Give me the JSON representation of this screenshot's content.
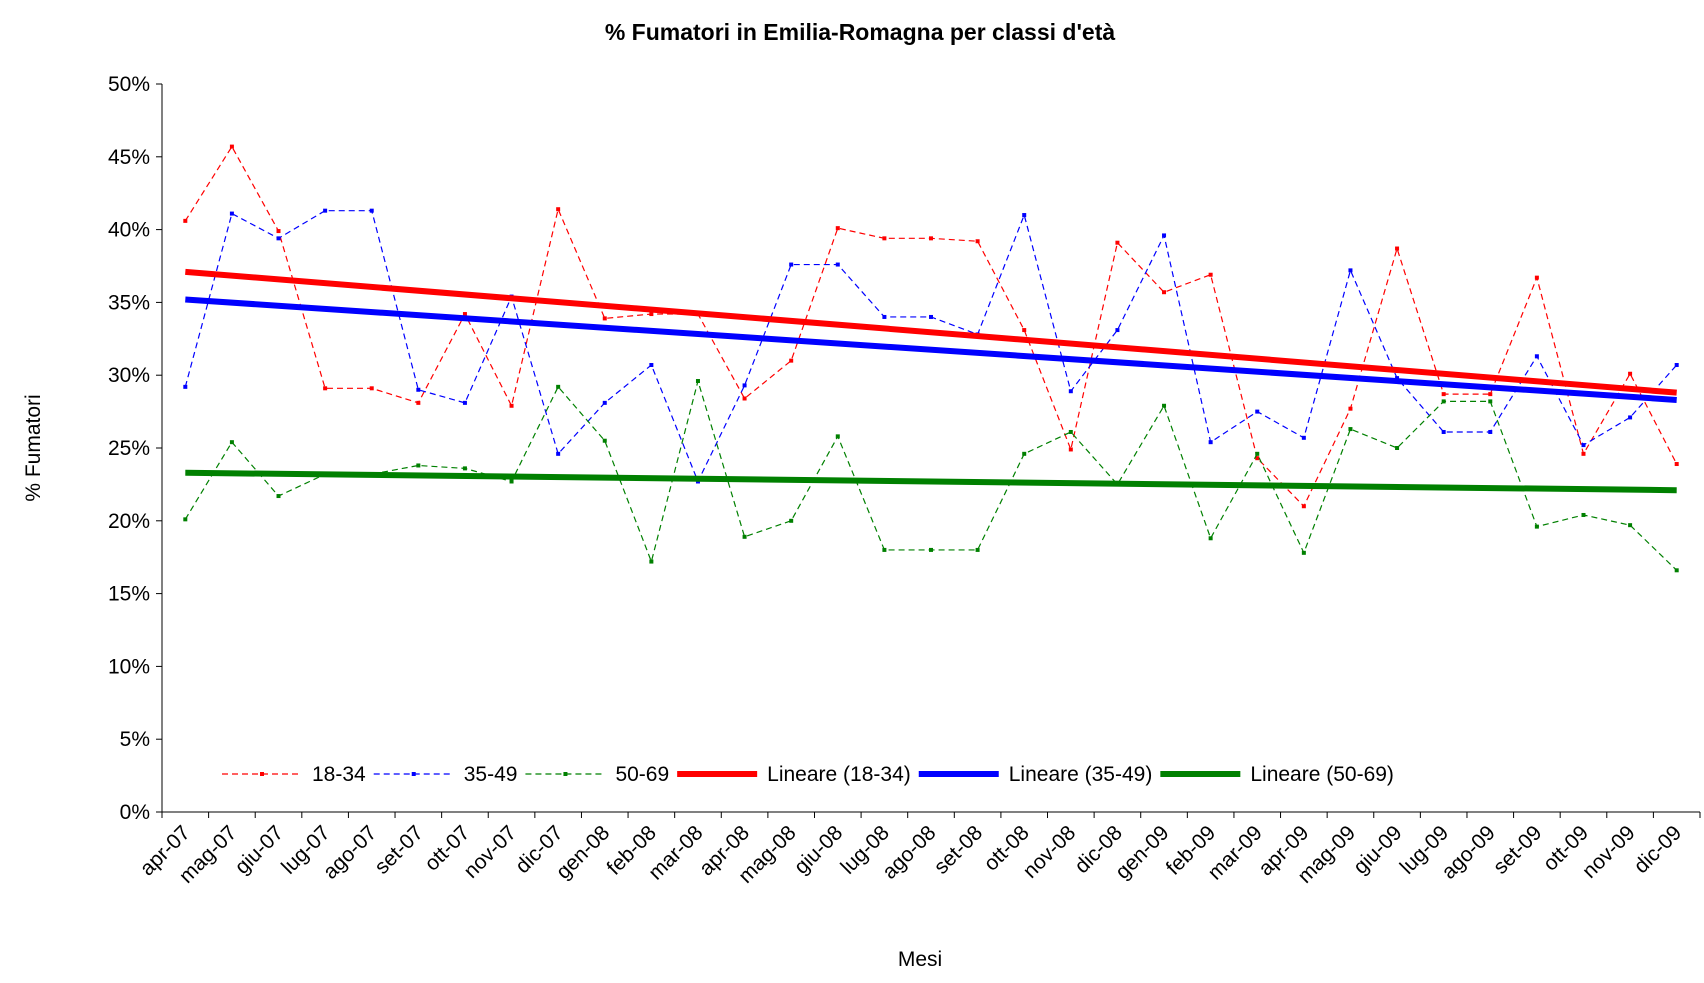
{
  "chart_data": {
    "type": "line",
    "title": "% Fumatori in Emilia-Romagna per classi d'età",
    "x_label": "Mesi",
    "y_label": "% Fumatori",
    "categories": [
      "apr-07",
      "mag-07",
      "giu-07",
      "lug-07",
      "ago-07",
      "set-07",
      "ott-07",
      "nov-07",
      "dic-07",
      "gen-08",
      "feb-08",
      "mar-08",
      "apr-08",
      "mag-08",
      "giu-08",
      "lug-08",
      "ago-08",
      "set-08",
      "ott-08",
      "nov-08",
      "dic-08",
      "gen-09",
      "feb-09",
      "mar-09",
      "apr-09",
      "mag-09",
      "giu-09",
      "lug-09",
      "ago-09",
      "set-09",
      "ott-09",
      "nov-09",
      "dic-09"
    ],
    "series": [
      {
        "name": "18-34",
        "color": "#ff0000",
        "values": [
          40.6,
          45.7,
          39.9,
          29.1,
          29.1,
          28.1,
          34.2,
          27.9,
          41.4,
          33.9,
          34.2,
          34.2,
          28.4,
          31.0,
          40.1,
          39.4,
          39.4,
          39.2,
          33.1,
          24.9,
          39.1,
          35.7,
          36.9,
          24.3,
          21.0,
          27.7,
          38.7,
          28.7,
          28.7,
          36.7,
          24.6,
          30.1,
          23.9
        ]
      },
      {
        "name": "35-49",
        "color": "#0000ff",
        "values": [
          29.2,
          41.1,
          39.4,
          41.3,
          41.3,
          29.0,
          28.1,
          35.4,
          24.6,
          28.1,
          30.7,
          22.7,
          29.3,
          37.6,
          37.6,
          34.0,
          34.0,
          32.8,
          41.0,
          28.9,
          33.1,
          39.6,
          25.4,
          27.5,
          25.7,
          37.2,
          29.8,
          26.1,
          26.1,
          31.3,
          25.2,
          27.1,
          30.7
        ]
      },
      {
        "name": "50-69",
        "color": "#008000",
        "values": [
          20.1,
          25.4,
          21.7,
          23.2,
          23.2,
          23.8,
          23.6,
          22.7,
          29.2,
          25.5,
          17.2,
          29.6,
          18.9,
          20.0,
          25.8,
          18.0,
          18.0,
          18.0,
          24.6,
          26.1,
          22.5,
          27.9,
          18.8,
          24.6,
          17.8,
          26.3,
          25.0,
          28.2,
          28.2,
          19.6,
          20.4,
          19.7,
          16.6
        ]
      }
    ],
    "trendlines": [
      {
        "name": "Lineare (18-34)",
        "color": "#ff0000",
        "start": 37.1,
        "end": 28.8
      },
      {
        "name": "Lineare (35-49)",
        "color": "#0000ff",
        "start": 35.2,
        "end": 28.3
      },
      {
        "name": "Lineare (50-69)",
        "color": "#008000",
        "start": 23.3,
        "end": 22.1
      }
    ],
    "ylim": [
      0,
      50
    ],
    "yticks": [
      {
        "value": 0,
        "label": "0%"
      },
      {
        "value": 5,
        "label": "5%"
      },
      {
        "value": 10,
        "label": "10%"
      },
      {
        "value": 15,
        "label": "15%"
      },
      {
        "value": 20,
        "label": "20%"
      },
      {
        "value": 25,
        "label": "25%"
      },
      {
        "value": 30,
        "label": "30%"
      },
      {
        "value": 35,
        "label": "35%"
      },
      {
        "value": 40,
        "label": "40%"
      },
      {
        "value": 45,
        "label": "45%"
      },
      {
        "value": 50,
        "label": "50%"
      }
    ],
    "grid": false,
    "legend": "bottom"
  }
}
